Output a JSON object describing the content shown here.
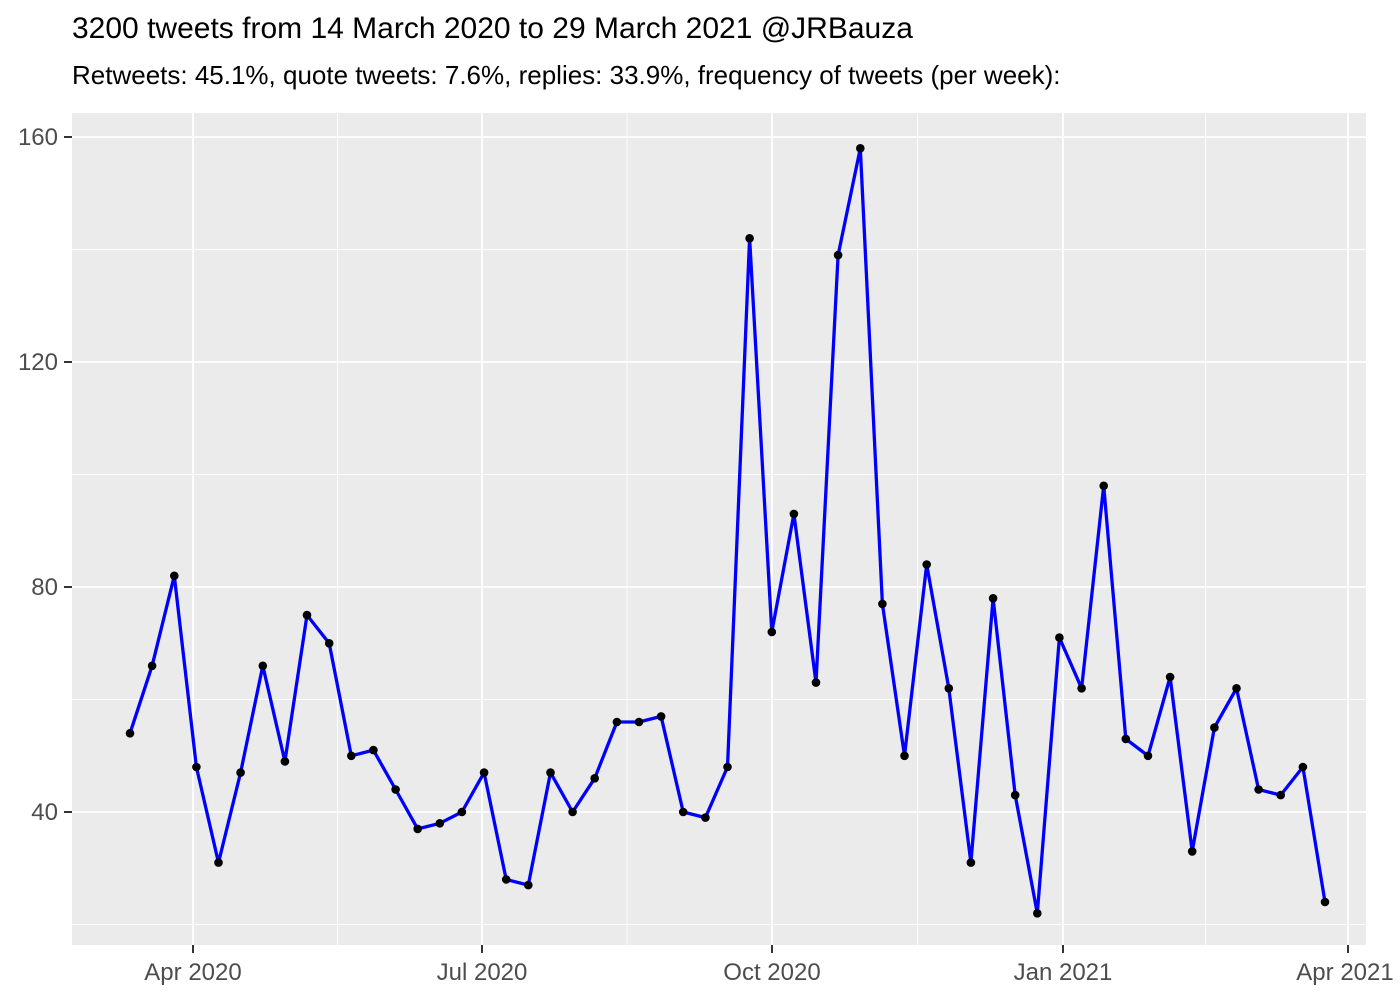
{
  "header": {
    "title": "3200 tweets from 14 March 2020 to 29 March 2021 @JRBauza",
    "subtitle": "Retweets: 45.1%, quote tweets: 7.6%, replies: 33.9%, frequency of tweets (per week):"
  },
  "chart_data": {
    "type": "line",
    "title": "3200 tweets from 14 March 2020 to 29 March 2021 @JRBauza",
    "subtitle": "Retweets: 45.1%, quote tweets: 7.6%, replies: 33.9%, frequency of tweets (per week):",
    "total_tweets": 3200,
    "retweets_pct": 45.1,
    "quote_tweets_pct": 7.6,
    "replies_pct": 33.9,
    "x_unit": "week",
    "x_start": "14 March 2020",
    "x_end": "29 March 2021",
    "values": [
      54,
      66,
      82,
      48,
      31,
      47,
      66,
      49,
      75,
      70,
      50,
      51,
      44,
      37,
      38,
      40,
      47,
      28,
      27,
      47,
      40,
      46,
      56,
      56,
      57,
      40,
      39,
      48,
      142,
      72,
      93,
      63,
      139,
      158,
      77,
      50,
      84,
      62,
      31,
      78,
      43,
      22,
      71,
      62,
      98,
      53,
      50,
      64,
      33,
      55,
      62,
      44,
      43,
      48,
      24
    ],
    "x_tick_labels": [
      "Apr 2020",
      "Jul 2020",
      "Oct 2020",
      "Jan 2021",
      "Apr 2021"
    ],
    "y_tick_labels": [
      "40",
      "80",
      "120",
      "160"
    ],
    "y_tick_values": [
      40,
      80,
      120,
      160
    ],
    "y_minor_values": [
      20,
      60,
      100,
      140
    ],
    "ylim_approx": [
      16,
      164
    ],
    "grid": true,
    "legend": false,
    "colors": {
      "line": "#0000FF",
      "point": "#000000",
      "panel_bg": "#EBEBEB",
      "grid": "#FFFFFF",
      "axis_text": "#4D4D4D",
      "tick_mark": "#333333",
      "title_text": "#000000"
    }
  }
}
